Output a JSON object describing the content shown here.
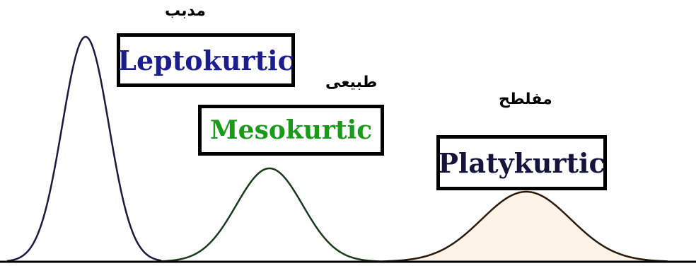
{
  "distributions": [
    {
      "key": "lepto",
      "label": "Leptokurtic",
      "arabic_label": "مدبب",
      "label_color": "#1c1c8c",
      "curve_color": "#1a1a40",
      "curve_fill": "#ffffff"
    },
    {
      "key": "meso",
      "label": "Mesokurtic",
      "arabic_label": "طبيعى",
      "label_color": "#1a9a1a",
      "curve_color": "#1a3a1a",
      "curve_fill": "#ffffff"
    },
    {
      "key": "platy",
      "label": "Platykurtic",
      "arabic_label": "مفلطح",
      "label_color": "#14143c",
      "curve_color": "#2a1a0a",
      "curve_fill": "#fdf3e7"
    }
  ],
  "baseline_color": "#000000"
}
